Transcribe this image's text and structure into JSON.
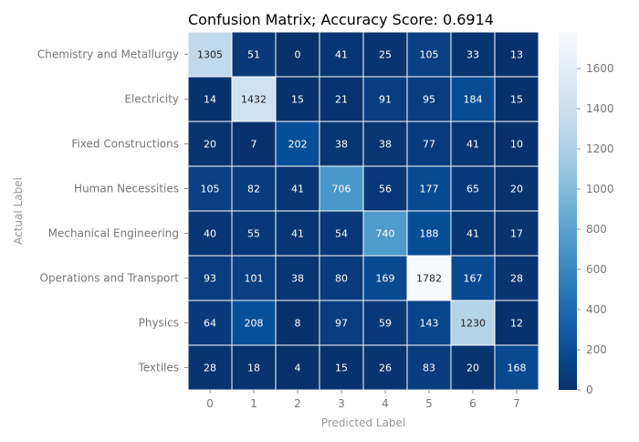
{
  "chart_data": {
    "type": "heatmap",
    "title": "Confusion Matrix; Accuracy Score: 0.6914",
    "xlabel": "Predicted Label",
    "ylabel": "Actual Label",
    "x_categories": [
      "0",
      "1",
      "2",
      "3",
      "4",
      "5",
      "6",
      "7"
    ],
    "y_categories": [
      "Chemistry and Metallurgy",
      "Electricity",
      "Fixed Constructions",
      "Human Necessities",
      "Mechanical Engineering",
      "Operations and Transport",
      "Physics",
      "Textiles"
    ],
    "values": [
      [
        1305,
        51,
        0,
        41,
        25,
        105,
        33,
        13
      ],
      [
        14,
        1432,
        15,
        21,
        91,
        95,
        184,
        15
      ],
      [
        20,
        7,
        202,
        38,
        38,
        77,
        41,
        10
      ],
      [
        105,
        82,
        41,
        706,
        56,
        177,
        65,
        20
      ],
      [
        40,
        55,
        41,
        54,
        740,
        188,
        41,
        17
      ],
      [
        93,
        101,
        38,
        80,
        169,
        1782,
        167,
        28
      ],
      [
        64,
        208,
        8,
        97,
        59,
        143,
        1230,
        12
      ],
      [
        28,
        18,
        4,
        15,
        26,
        83,
        20,
        168
      ]
    ],
    "colormap": "Blues",
    "color_range": [
      0,
      1782
    ],
    "colorbar_ticks": [
      "0",
      "200",
      "400",
      "600",
      "800",
      "1000",
      "1200",
      "1400",
      "1600"
    ],
    "cell_border_color": "#ffffff",
    "grid": false,
    "legend": "colorbar-right"
  }
}
